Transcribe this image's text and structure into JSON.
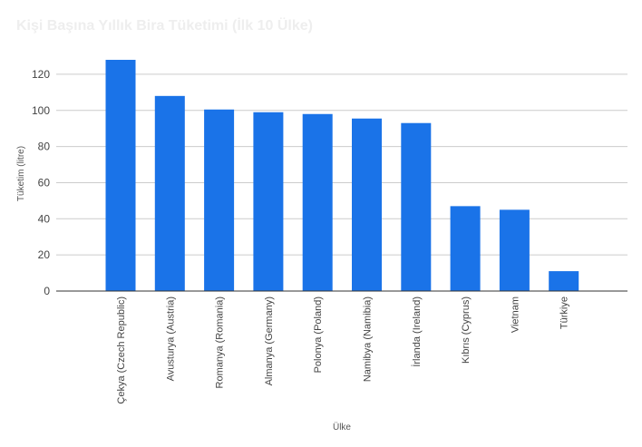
{
  "chart_data": {
    "type": "bar",
    "title": "Kişi Başına Yıllık Bira Tüketimi (İlk 10 Ülke)",
    "xlabel": "Ülke",
    "ylabel": "Tüketim (litre)",
    "ylim": [
      0,
      130
    ],
    "yticks": [
      0,
      20,
      40,
      60,
      80,
      100,
      120
    ],
    "grid": true,
    "bar_color": "#1a73e8",
    "categories": [
      "Çekya (Czech Republic)",
      "Avusturya (Austria)",
      "Romanya (Romania)",
      "Almanya (Germany)",
      "Polonya (Poland)",
      "Namibya (Namibia)",
      "İrlanda (Ireland)",
      "Kıbrıs (Cyprus)",
      "Vietnam",
      "Türkiye"
    ],
    "values": [
      128,
      108,
      100.5,
      99,
      98,
      95.5,
      93,
      47,
      45,
      11
    ]
  }
}
